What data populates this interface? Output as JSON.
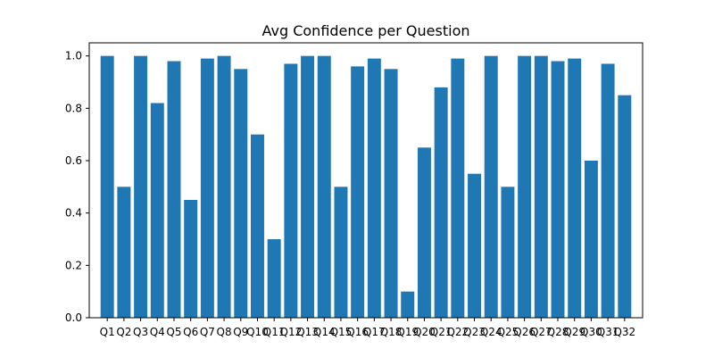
{
  "chart_data": {
    "type": "bar",
    "title": "Avg Confidence per Question",
    "xlabel": "",
    "ylabel": "",
    "categories": [
      "Q1",
      "Q2",
      "Q3",
      "Q4",
      "Q5",
      "Q6",
      "Q7",
      "Q8",
      "Q9",
      "Q10",
      "Q11",
      "Q12",
      "Q13",
      "Q14",
      "Q15",
      "Q16",
      "Q17",
      "Q18",
      "Q19",
      "Q20",
      "Q21",
      "Q22",
      "Q23",
      "Q24",
      "Q25",
      "Q26",
      "Q27",
      "Q28",
      "Q29",
      "Q30",
      "Q31",
      "Q32"
    ],
    "values": [
      1.0,
      0.5,
      1.0,
      0.82,
      0.98,
      0.45,
      0.99,
      1.0,
      0.95,
      0.7,
      0.3,
      0.97,
      1.0,
      1.0,
      0.5,
      0.96,
      0.99,
      0.95,
      0.1,
      0.65,
      0.88,
      0.99,
      0.55,
      1.0,
      0.5,
      1.0,
      1.0,
      0.98,
      0.99,
      0.6,
      0.97,
      0.85
    ],
    "ylim": [
      0,
      1.05
    ],
    "yticks": [
      "0.0",
      "0.2",
      "0.4",
      "0.6",
      "0.8",
      "1.0"
    ],
    "grid": false,
    "bar_color": "#1f77b4"
  }
}
